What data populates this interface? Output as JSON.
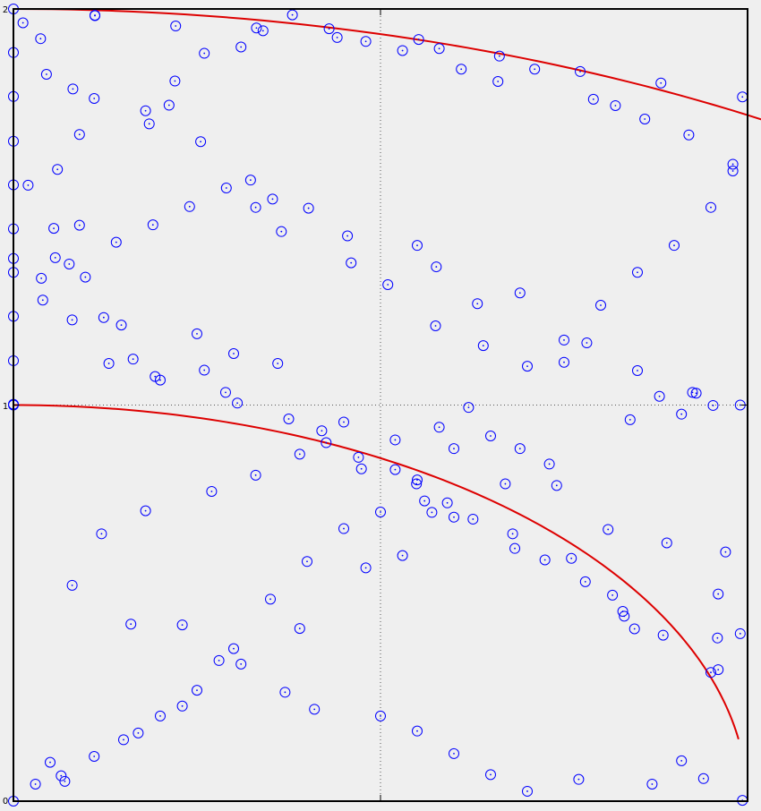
{
  "chart_data": {
    "type": "scatter",
    "title": "",
    "xlabel": "",
    "ylabel": "",
    "xlim": [
      1,
      2
    ],
    "ylim": [
      0,
      2
    ],
    "grid": "dotted-center",
    "legend": "none",
    "tick_labels": {
      "y_top": "2",
      "y_middle": "1",
      "y_bottom": "0"
    },
    "colors": {
      "points": "#0000ff",
      "curves": "#dd0000",
      "axes": "#000000",
      "background": "#efefef"
    },
    "curves": [
      {
        "shape": "quarter-arc",
        "radius": 1,
        "theta_start": 90,
        "theta_end": 9
      },
      {
        "shape": "quarter-arc",
        "radius": 2,
        "theta_start": 90,
        "theta_end": 0
      }
    ],
    "series": [
      {
        "marker": "circle-with-dot",
        "x": [
          1.0,
          1.0,
          1.0,
          1.0,
          1.0,
          1.0,
          1.0,
          1.0,
          1.0,
          1.0,
          1.0,
          1.111,
          1.111,
          1.221,
          1.331,
          1.441,
          1.552,
          1.662,
          1.772,
          1.882,
          1.993,
          1.993,
          1.0,
          1.013,
          1.037,
          1.045,
          1.081,
          1.11,
          1.212,
          1.185,
          1.255,
          1.323,
          1.353,
          1.402,
          1.455,
          1.55,
          1.576,
          1.632,
          1.69,
          1.781,
          1.85,
          1.925,
          1.953,
          1.99,
          1.0,
          1.038,
          1.057,
          1.076,
          1.098,
          1.123,
          1.147,
          1.163,
          1.193,
          1.25,
          1.289,
          1.305,
          1.375,
          1.426,
          1.474,
          1.549,
          1.591,
          1.626,
          1.683,
          1.724,
          1.779,
          1.816,
          1.832,
          1.846,
          1.885,
          1.959,
          1.95,
          1.96,
          1.05,
          1.07,
          1.15,
          1.2,
          1.25,
          1.3,
          1.35,
          1.4,
          1.45,
          1.5,
          1.55,
          1.6,
          1.65,
          1.7,
          1.75,
          1.8,
          1.85,
          1.9,
          1.95,
          1.98,
          1.03,
          1.065,
          1.11,
          1.17,
          1.23,
          1.31,
          1.39,
          1.48,
          1.53,
          1.57,
          1.67,
          1.73,
          1.84,
          1.93,
          1.02,
          1.06,
          1.09,
          1.18,
          1.22,
          1.26,
          1.31,
          1.34,
          1.38,
          1.43,
          1.48,
          1.53,
          1.58,
          1.61,
          1.66,
          1.71,
          1.79,
          1.82,
          1.86,
          1.92,
          1.98,
          1.055,
          1.09,
          1.14,
          1.19,
          1.24,
          1.29,
          1.33,
          1.365,
          1.46,
          1.51,
          1.575,
          1.64,
          1.75,
          1.88,
          1.91,
          1.04,
          1.08,
          1.13,
          1.2,
          1.26,
          1.3,
          1.36,
          1.42,
          1.47,
          1.52,
          1.56,
          1.6,
          1.68,
          1.76,
          1.83,
          1.96,
          1.99,
          1.08,
          1.16,
          1.23,
          1.28,
          1.37,
          1.41,
          1.5,
          1.55,
          1.6,
          1.65,
          1.7,
          1.77,
          1.87,
          1.91,
          1.94,
          1.12,
          1.18,
          1.27,
          1.33,
          1.39,
          1.45,
          1.52,
          1.58,
          1.62,
          1.69,
          1.74,
          1.81,
          1.89,
          1.97
        ],
        "y": [
          2.0,
          1.89,
          1.779,
          1.666,
          1.556,
          1.445,
          1.335,
          1.224,
          1.112,
          1.002,
          0.0,
          1.984,
          1.983,
          1.957,
          1.952,
          1.928,
          1.923,
          1.881,
          1.842,
          1.813,
          1.778,
          0.002,
          1.37,
          1.965,
          1.925,
          1.835,
          1.798,
          1.774,
          1.757,
          1.71,
          1.665,
          1.568,
          1.52,
          1.497,
          1.427,
          1.403,
          1.349,
          1.256,
          1.283,
          1.157,
          1.087,
          1.032,
          0.999,
          1.0,
          1.0,
          1.32,
          1.372,
          1.356,
          1.323,
          1.221,
          1.202,
          1.116,
          1.072,
          1.18,
          1.032,
          1.005,
          0.965,
          0.905,
          0.839,
          0.801,
          0.753,
          0.712,
          0.638,
          0.609,
          0.554,
          0.52,
          0.467,
          0.435,
          0.419,
          0.412,
          0.325,
          0.332,
          0.098,
          0.05,
          0.155,
          0.215,
          0.28,
          0.385,
          0.51,
          0.605,
          0.688,
          0.73,
          0.811,
          0.89,
          0.922,
          1.098,
          1.164,
          1.252,
          1.335,
          1.403,
          1.499,
          1.608,
          0.043,
          0.064,
          0.113,
          0.172,
          0.24,
          0.346,
          0.436,
          0.589,
          0.62,
          0.729,
          0.801,
          0.851,
          0.963,
          1.03,
          1.555,
          1.595,
          1.683,
          1.743,
          1.818,
          1.888,
          1.904,
          1.945,
          1.985,
          1.95,
          1.918,
          1.895,
          1.9,
          1.848,
          1.817,
          1.848,
          1.772,
          1.756,
          1.722,
          1.682,
          1.591,
          1.446,
          1.454,
          1.411,
          1.455,
          1.501,
          1.548,
          1.499,
          1.438,
          1.359,
          1.304,
          1.2,
          1.15,
          1.108,
          1.022,
          0.977,
          1.265,
          1.215,
          1.105,
          1.063,
          1.088,
          1.13,
          1.105,
          0.935,
          0.868,
          0.837,
          0.758,
          0.717,
          0.675,
          0.613,
          0.479,
          0.523,
          0.423,
          0.545,
          0.447,
          0.445,
          0.355,
          0.275,
          0.232,
          0.215,
          0.177,
          0.12,
          0.067,
          0.025,
          0.055,
          0.043,
          0.102,
          0.057,
          0.675,
          0.733,
          0.782,
          0.823,
          0.876,
          0.957,
          0.912,
          0.944,
          0.994,
          0.89,
          0.797,
          0.686,
          0.652,
          0.629
        ]
      }
    ]
  }
}
